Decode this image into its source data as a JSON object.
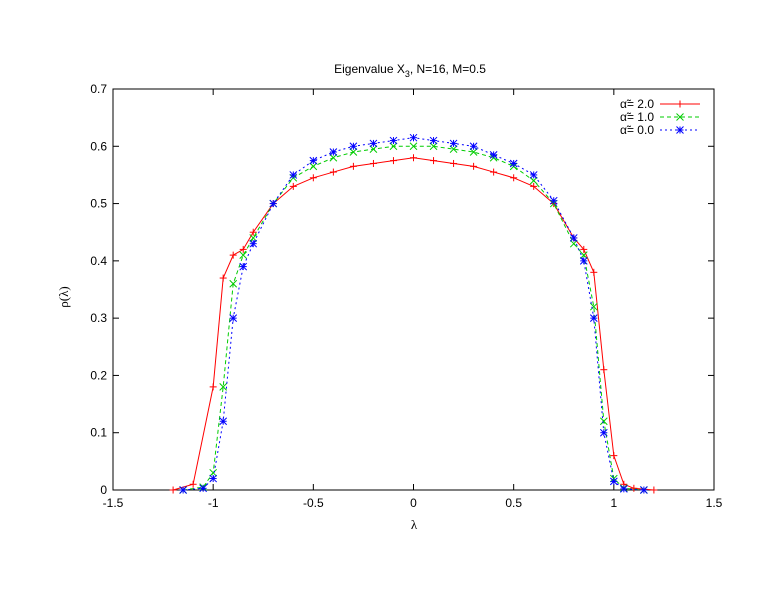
{
  "chart_data": {
    "type": "line",
    "title_main": "Eigenvalue X",
    "title_sub": "3",
    "title_rest": ", N=16, M=0.5",
    "xlabel": "λ",
    "ylabel": "ρ(λ)",
    "xlim": [
      -1.5,
      1.5
    ],
    "ylim": [
      0,
      0.7
    ],
    "xticks": [
      "-1.5",
      "-1",
      "-0.5",
      "0",
      "0.5",
      "1",
      "1.5"
    ],
    "yticks": [
      "0",
      "0.1",
      "0.2",
      "0.3",
      "0.4",
      "0.5",
      "0.6",
      "0.7"
    ],
    "grid": false,
    "legend_position": "top-right",
    "series": [
      {
        "name": "α̃= 2.0",
        "color": "#ff0000",
        "marker": "plus",
        "dash": "",
        "x": [
          -1.2,
          -1.1,
          -1.0,
          -0.95,
          -0.9,
          -0.85,
          -0.8,
          -0.7,
          -0.6,
          -0.5,
          -0.4,
          -0.3,
          -0.2,
          -0.1,
          0.0,
          0.1,
          0.2,
          0.3,
          0.4,
          0.5,
          0.6,
          0.7,
          0.8,
          0.85,
          0.9,
          0.95,
          1.0,
          1.05,
          1.1,
          1.2
        ],
        "y": [
          0.0,
          0.01,
          0.18,
          0.37,
          0.41,
          0.42,
          0.45,
          0.5,
          0.53,
          0.545,
          0.555,
          0.565,
          0.57,
          0.575,
          0.58,
          0.575,
          0.57,
          0.565,
          0.555,
          0.545,
          0.53,
          0.5,
          0.44,
          0.42,
          0.38,
          0.21,
          0.06,
          0.01,
          0.003,
          0.0
        ]
      },
      {
        "name": "α̃= 1.0",
        "color": "#00cc00",
        "marker": "cross",
        "dash": "4,3",
        "x": [
          -1.15,
          -1.05,
          -1.0,
          -0.95,
          -0.9,
          -0.85,
          -0.8,
          -0.7,
          -0.6,
          -0.5,
          -0.4,
          -0.3,
          -0.2,
          -0.1,
          0.0,
          0.1,
          0.2,
          0.3,
          0.4,
          0.5,
          0.6,
          0.7,
          0.8,
          0.85,
          0.9,
          0.95,
          1.0,
          1.05,
          1.15
        ],
        "y": [
          0.0,
          0.005,
          0.03,
          0.18,
          0.36,
          0.41,
          0.44,
          0.5,
          0.545,
          0.565,
          0.58,
          0.59,
          0.595,
          0.6,
          0.6,
          0.6,
          0.595,
          0.59,
          0.58,
          0.565,
          0.54,
          0.5,
          0.43,
          0.41,
          0.32,
          0.12,
          0.02,
          0.003,
          0.0
        ]
      },
      {
        "name": "α̃= 0.0",
        "color": "#0000ff",
        "marker": "star",
        "dash": "2,3",
        "x": [
          -1.15,
          -1.05,
          -1.0,
          -0.95,
          -0.9,
          -0.85,
          -0.8,
          -0.7,
          -0.6,
          -0.5,
          -0.4,
          -0.3,
          -0.2,
          -0.1,
          0.0,
          0.1,
          0.2,
          0.3,
          0.4,
          0.5,
          0.6,
          0.7,
          0.8,
          0.85,
          0.9,
          0.95,
          1.0,
          1.05,
          1.15
        ],
        "y": [
          0.0,
          0.003,
          0.02,
          0.12,
          0.3,
          0.39,
          0.43,
          0.5,
          0.55,
          0.575,
          0.59,
          0.6,
          0.605,
          0.61,
          0.615,
          0.61,
          0.605,
          0.6,
          0.585,
          0.57,
          0.55,
          0.505,
          0.44,
          0.4,
          0.3,
          0.1,
          0.015,
          0.002,
          0.0
        ]
      }
    ]
  }
}
